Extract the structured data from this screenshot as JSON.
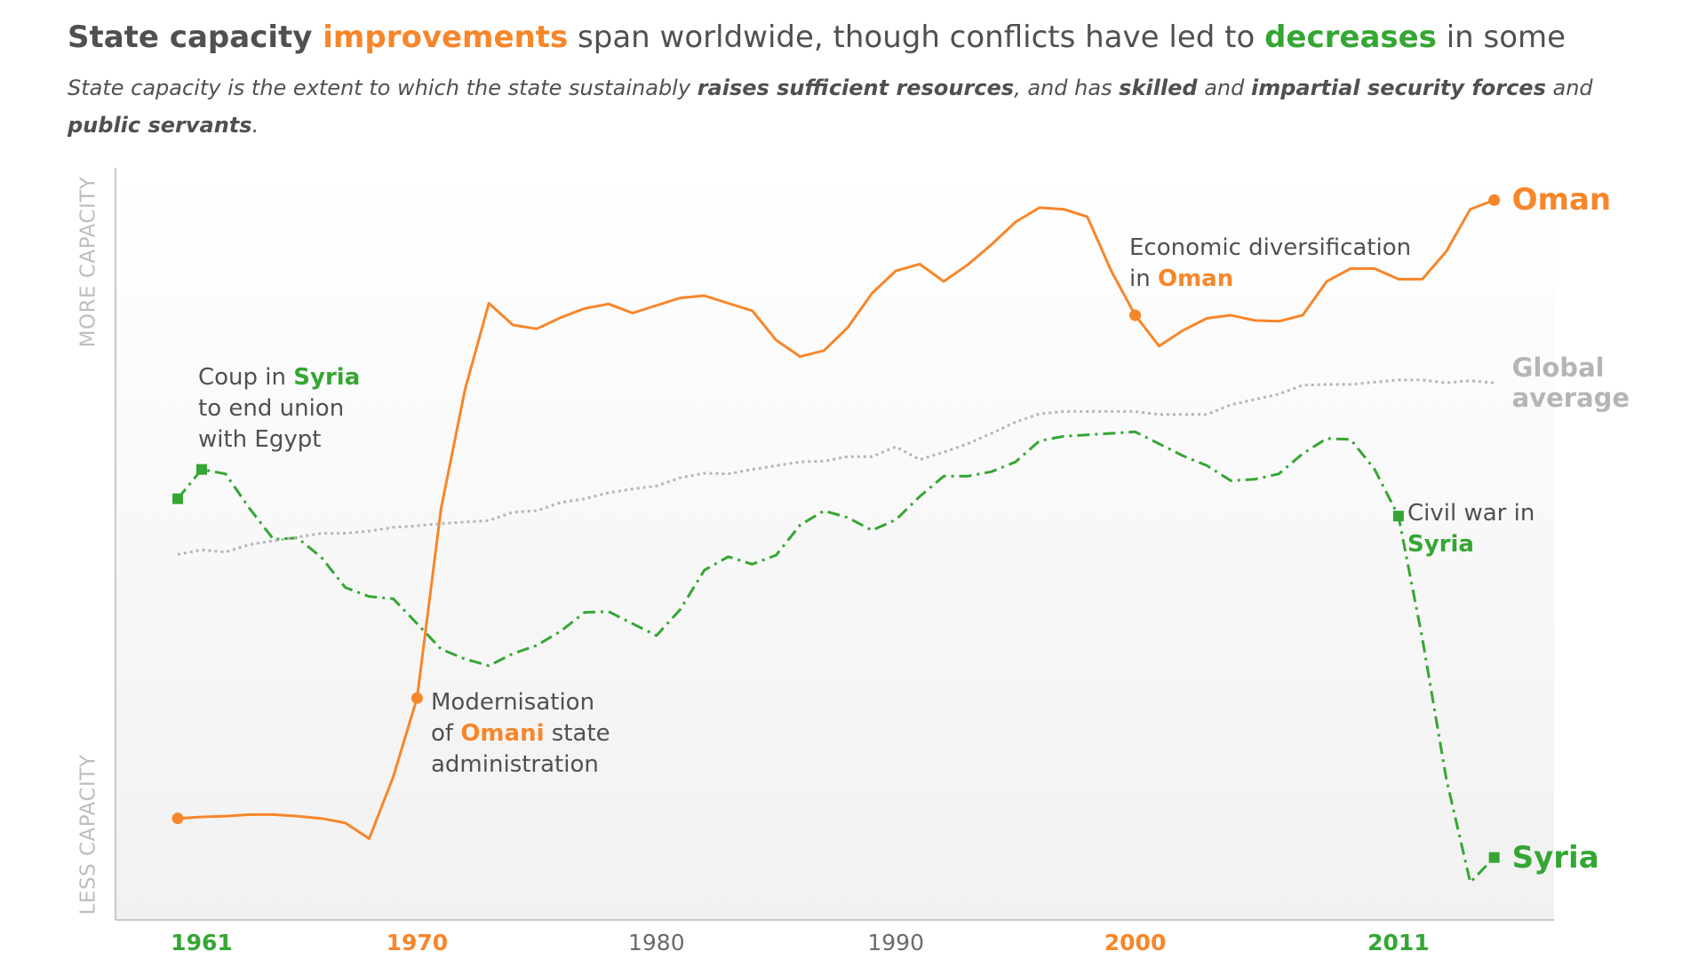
{
  "chart_data": {
    "type": "line",
    "title": [
      {
        "text": "State capacity ",
        "style": "bold"
      },
      {
        "text": "improvements",
        "style": "bold",
        "color": "orange"
      },
      {
        "text": " span worldwide, though conflicts have led to "
      },
      {
        "text": "decreases",
        "style": "bold",
        "color": "green"
      },
      {
        "text": " in some"
      }
    ],
    "subtitle": [
      {
        "text": "State capacity is the extent to which the state sustainably "
      },
      {
        "text": "raises sufficient resources",
        "style": "bold"
      },
      {
        "text": ", and has "
      },
      {
        "text": "skilled",
        "style": "bold"
      },
      {
        "text": " and "
      },
      {
        "text": "impartial security forces",
        "style": "bold"
      },
      {
        "text": " and "
      },
      {
        "text": "public servants",
        "style": "bold"
      },
      {
        "text": "."
      }
    ],
    "y_label_top": "MORE CAPACITY",
    "y_label_bottom": "LESS CAPACITY",
    "colors": {
      "orange": "#f7862a",
      "green": "#35a633",
      "gray": "#b5b5b5",
      "text": "#505050"
    },
    "x": [
      1960,
      1961,
      1962,
      1963,
      1964,
      1965,
      1966,
      1967,
      1968,
      1969,
      1970,
      1971,
      1972,
      1973,
      1974,
      1975,
      1976,
      1977,
      1978,
      1979,
      1980,
      1981,
      1982,
      1983,
      1984,
      1985,
      1986,
      1987,
      1988,
      1989,
      1990,
      1991,
      1992,
      1993,
      1994,
      1995,
      1996,
      1997,
      1998,
      1999,
      2000,
      2001,
      2002,
      2003,
      2004,
      2005,
      2006,
      2007,
      2008,
      2009,
      2010,
      2011,
      2012,
      2013,
      2014,
      2015
    ],
    "xlim": [
      1957.4,
      2017.5
    ],
    "xticks": [
      1961,
      1970,
      1980,
      1990,
      2000,
      2011
    ],
    "xtick_colors": [
      "green",
      "orange",
      "gray",
      "gray",
      "orange",
      "green"
    ],
    "ylim": [
      0,
      100
    ],
    "series": [
      {
        "name": "Oman",
        "color": "orange",
        "style": "solid",
        "marker": "circle",
        "markers": [
          0,
          10,
          40,
          55
        ],
        "values": [
          13.5,
          13.7,
          13.8,
          14.0,
          14.0,
          13.8,
          13.5,
          12.9,
          10.8,
          19.0,
          29.5,
          54.7,
          70.5,
          82.0,
          79.1,
          78.6,
          80.1,
          81.3,
          81.9,
          80.7,
          81.7,
          82.7,
          83.0,
          82.0,
          81.0,
          77.1,
          74.9,
          75.7,
          78.8,
          83.3,
          86.3,
          87.2,
          84.9,
          87.1,
          89.8,
          92.8,
          94.7,
          94.5,
          93.5,
          86.3,
          80.4,
          76.3,
          78.4,
          80.0,
          80.4,
          79.7,
          79.6,
          80.4,
          84.9,
          86.6,
          86.6,
          85.2,
          85.2,
          88.9,
          94.5,
          95.7
        ]
      },
      {
        "name": "Syria",
        "color": "green",
        "style": "dashdot",
        "marker": "square",
        "markers": [
          0,
          1,
          51,
          55
        ],
        "values": [
          56.0,
          59.9,
          59.3,
          54.7,
          50.6,
          50.8,
          48.2,
          44.2,
          43.0,
          42.7,
          39.4,
          36.0,
          34.7,
          33.8,
          35.4,
          36.5,
          38.4,
          40.9,
          41.0,
          39.4,
          37.8,
          41.3,
          46.5,
          48.3,
          47.3,
          48.5,
          52.5,
          54.4,
          53.5,
          51.8,
          53.2,
          56.3,
          59.0,
          59.0,
          59.6,
          60.9,
          63.7,
          64.3,
          64.5,
          64.7,
          64.9,
          63.3,
          61.7,
          60.4,
          58.4,
          58.6,
          59.3,
          62.0,
          64.0,
          63.9,
          59.9,
          53.7,
          37.4,
          18.7,
          5.0,
          8.3
        ]
      },
      {
        "name": "Global average",
        "color": "gray",
        "style": "dotted",
        "markers": [],
        "values": [
          48.6,
          49.2,
          48.9,
          49.9,
          50.4,
          50.9,
          51.4,
          51.4,
          51.7,
          52.2,
          52.4,
          52.7,
          52.9,
          53.1,
          54.2,
          54.4,
          55.5,
          56.0,
          56.8,
          57.3,
          57.7,
          58.8,
          59.4,
          59.3,
          59.9,
          60.4,
          60.9,
          61.0,
          61.6,
          61.6,
          62.9,
          61.2,
          62.2,
          63.3,
          64.7,
          66.2,
          67.3,
          67.6,
          67.6,
          67.6,
          67.6,
          67.2,
          67.2,
          67.2,
          68.5,
          69.2,
          69.9,
          71.1,
          71.2,
          71.2,
          71.5,
          71.8,
          71.8,
          71.4,
          71.7,
          71.4
        ]
      }
    ],
    "annotations": [
      {
        "lines": [
          [
            {
              "text": "Coup in "
            },
            {
              "text": "Syria",
              "color": "green"
            }
          ],
          [
            {
              "text": "to end union"
            }
          ],
          [
            {
              "text": "with Egypt"
            }
          ]
        ]
      },
      {
        "lines": [
          [
            {
              "text": "Modernisation"
            }
          ],
          [
            {
              "text": "of "
            },
            {
              "text": "Omani",
              "color": "orange"
            },
            {
              "text": " state"
            }
          ],
          [
            {
              "text": "administration"
            }
          ]
        ]
      },
      {
        "lines": [
          [
            {
              "text": "Economic diversification"
            }
          ],
          [
            {
              "text": "in "
            },
            {
              "text": "Oman",
              "color": "orange"
            }
          ]
        ]
      },
      {
        "lines": [
          [
            {
              "text": "Civil war in"
            }
          ],
          [
            {
              "text": "Syria",
              "color": "green"
            }
          ]
        ]
      }
    ]
  }
}
